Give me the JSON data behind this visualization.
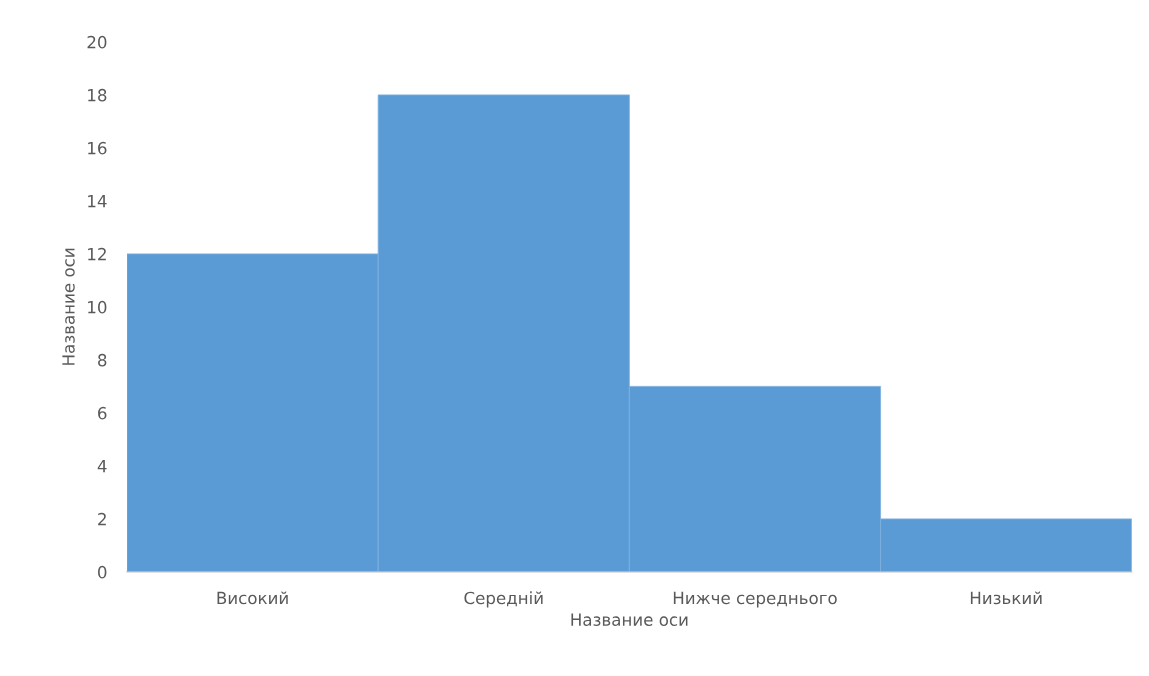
{
  "chart_data": {
    "type": "bar",
    "xlabel": "Название оси",
    "ylabel": "Название оси",
    "categories": [
      "Високий",
      "Середній",
      "Нижче середнього",
      "Низький"
    ],
    "values": [
      12,
      18,
      7,
      2
    ],
    "color": "#5b9bd5",
    "ylim": [
      0,
      20
    ],
    "yticks": [
      0,
      2,
      4,
      6,
      8,
      10,
      12,
      14,
      16,
      18,
      20
    ],
    "grid": false,
    "legend": false
  }
}
